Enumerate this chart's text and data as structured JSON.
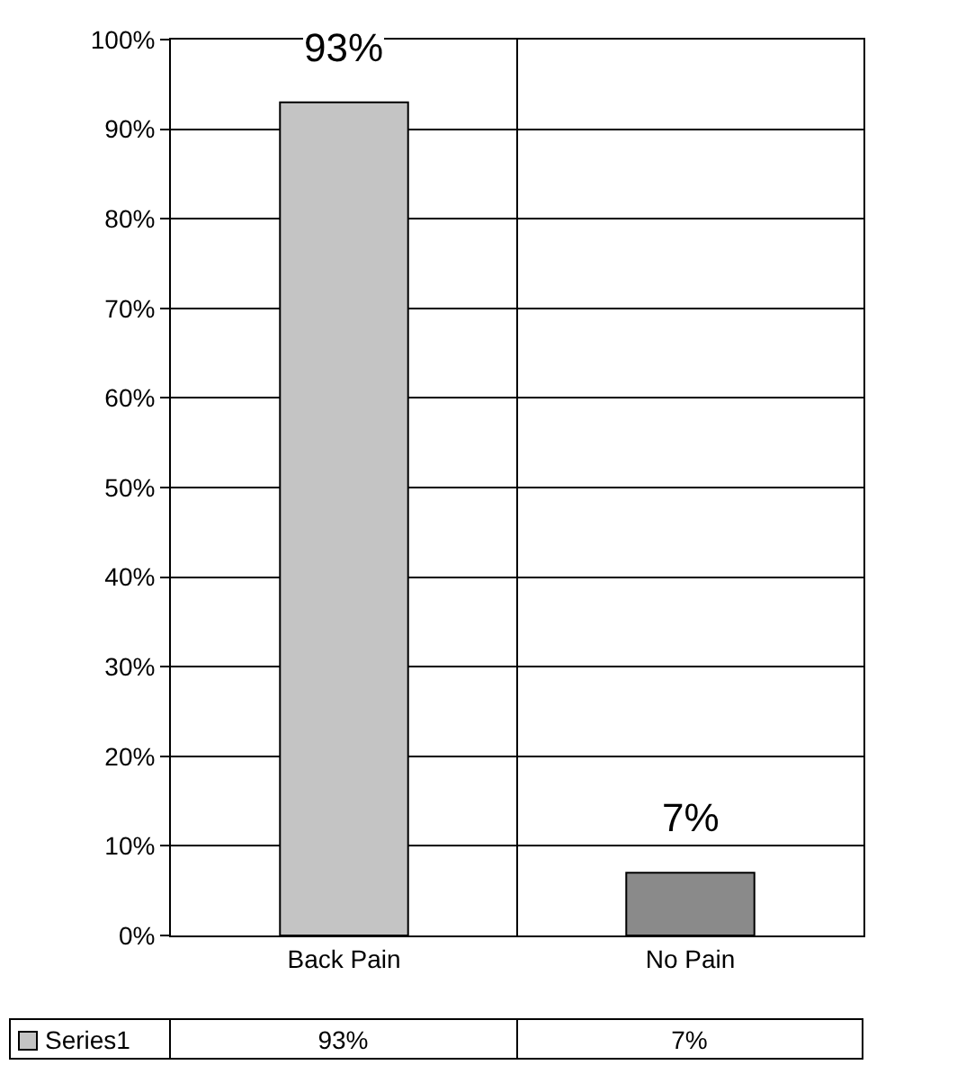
{
  "chart_data": {
    "type": "bar",
    "categories": [
      "Back Pain",
      "No Pain"
    ],
    "series": [
      {
        "name": "Series1",
        "colors": [
          "#c4c4c4",
          "#8a8a8a"
        ],
        "values": [
          93,
          7
        ],
        "value_labels": [
          "93%",
          "7%"
        ]
      }
    ],
    "ylim": [
      0,
      100
    ],
    "yticks": [
      {
        "value": 0,
        "label": "0%"
      },
      {
        "value": 10,
        "label": "10%"
      },
      {
        "value": 20,
        "label": "20%"
      },
      {
        "value": 30,
        "label": "30%"
      },
      {
        "value": 40,
        "label": "40%"
      },
      {
        "value": 50,
        "label": "50%"
      },
      {
        "value": 60,
        "label": "60%"
      },
      {
        "value": 70,
        "label": "70%"
      },
      {
        "value": 80,
        "label": "80%"
      },
      {
        "value": 90,
        "label": "90%"
      },
      {
        "value": 100,
        "label": "100%"
      }
    ],
    "grid": true,
    "legend": "bottom left"
  }
}
